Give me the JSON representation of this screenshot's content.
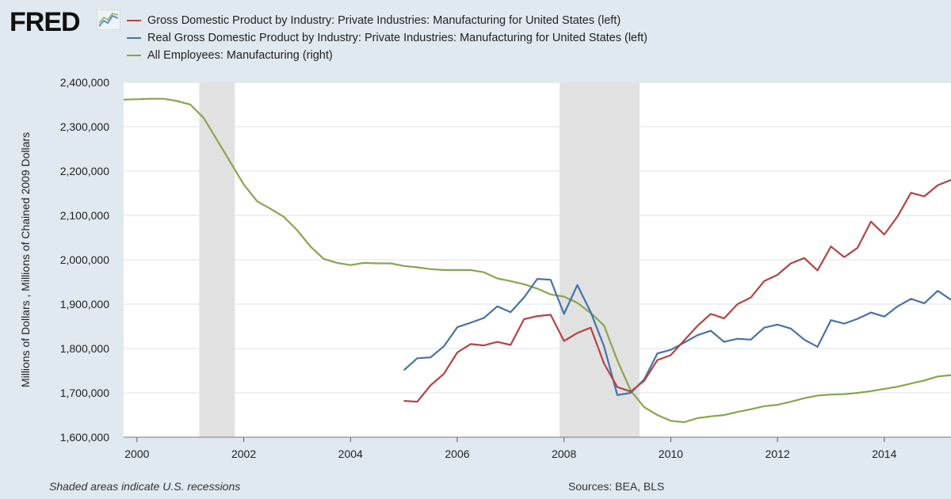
{
  "brand": "FRED",
  "footer": {
    "recession_note": "Shaded areas indicate U.S. recessions",
    "sources": "Sources: BEA, BLS"
  },
  "colors": {
    "background": "#e1e9f0",
    "plot_background": "#ffffff",
    "recession_shade": "#e1e1e1",
    "grid": "#dde3e8",
    "nominal": "#b24444",
    "real": "#4572a7",
    "employees": "#89a54e"
  },
  "chart_data": {
    "type": "line",
    "ylabel": "Millions of Dollars , Millions of Chained 2009 Dollars",
    "ylim": [
      1600000,
      2400000
    ],
    "yticks": [
      "1,600,000",
      "1,700,000",
      "1,800,000",
      "1,900,000",
      "2,000,000",
      "2,100,000",
      "2,200,000",
      "2,300,000",
      "2,400,000"
    ],
    "xlim": [
      1999.75,
      2015.25
    ],
    "xticks": [
      "2000",
      "2002",
      "2004",
      "2006",
      "2008",
      "2010",
      "2012",
      "2014"
    ],
    "grid": true,
    "legend_position": "top",
    "recessions": [
      [
        2001.167,
        2001.833
      ],
      [
        2007.917,
        2009.417
      ]
    ],
    "series": [
      {
        "name": "Gross Domestic Product by Industry: Private Industries: Manufacturing for United States (left)",
        "color": "#b24444",
        "x": [
          2005.0,
          2005.25,
          2005.5,
          2005.75,
          2006.0,
          2006.25,
          2006.5,
          2006.75,
          2007.0,
          2007.25,
          2007.5,
          2007.75,
          2008.0,
          2008.25,
          2008.5,
          2008.75,
          2009.0,
          2009.25,
          2009.5,
          2009.75,
          2010.0,
          2010.25,
          2010.5,
          2010.75,
          2011.0,
          2011.25,
          2011.5,
          2011.75,
          2012.0,
          2012.25,
          2012.5,
          2012.75,
          2013.0,
          2013.25,
          2013.5,
          2013.75,
          2014.0,
          2014.25,
          2014.5,
          2014.75,
          2015.0,
          2015.25
        ],
        "values": [
          1682000,
          1680000,
          1717000,
          1743000,
          1791000,
          1810000,
          1807000,
          1815000,
          1808000,
          1866000,
          1873000,
          1876000,
          1817000,
          1835000,
          1847000,
          1766000,
          1713000,
          1703000,
          1727000,
          1774000,
          1785000,
          1818000,
          1851000,
          1878000,
          1868000,
          1900000,
          1915000,
          1952000,
          1966000,
          1992000,
          2004000,
          1976000,
          2030000,
          2006000,
          2027000,
          2086000,
          2057000,
          2098000,
          2151000,
          2143000,
          2168000,
          2180000
        ]
      },
      {
        "name": "Real Gross Domestic Product by Industry: Private Industries: Manufacturing for United States (left)",
        "color": "#4572a7",
        "x": [
          2005.0,
          2005.25,
          2005.5,
          2005.75,
          2006.0,
          2006.25,
          2006.5,
          2006.75,
          2007.0,
          2007.25,
          2007.5,
          2007.75,
          2008.0,
          2008.25,
          2008.5,
          2008.75,
          2009.0,
          2009.25,
          2009.5,
          2009.75,
          2010.0,
          2010.25,
          2010.5,
          2010.75,
          2011.0,
          2011.25,
          2011.5,
          2011.75,
          2012.0,
          2012.25,
          2012.5,
          2012.75,
          2013.0,
          2013.25,
          2013.5,
          2013.75,
          2014.0,
          2014.25,
          2014.5,
          2014.75,
          2015.0,
          2015.25
        ],
        "values": [
          1751000,
          1778000,
          1780000,
          1805000,
          1848000,
          1858000,
          1869000,
          1895000,
          1882000,
          1915000,
          1957000,
          1955000,
          1878000,
          1943000,
          1882000,
          1805000,
          1695000,
          1700000,
          1730000,
          1789000,
          1797000,
          1813000,
          1830000,
          1840000,
          1815000,
          1822000,
          1820000,
          1847000,
          1854000,
          1845000,
          1820000,
          1804000,
          1864000,
          1856000,
          1867000,
          1881000,
          1872000,
          1895000,
          1912000,
          1902000,
          1930000,
          1910000
        ]
      },
      {
        "name": "All Employees: Manufacturing (right)",
        "color": "#89a54e",
        "x": [
          1999.75,
          2000.0,
          2000.25,
          2000.5,
          2000.75,
          2001.0,
          2001.25,
          2001.5,
          2001.75,
          2002.0,
          2002.25,
          2002.5,
          2002.75,
          2003.0,
          2003.25,
          2003.5,
          2003.75,
          2004.0,
          2004.25,
          2004.5,
          2004.75,
          2005.0,
          2005.25,
          2005.5,
          2005.75,
          2006.0,
          2006.25,
          2006.5,
          2006.75,
          2007.0,
          2007.25,
          2007.5,
          2007.75,
          2008.0,
          2008.25,
          2008.5,
          2008.75,
          2009.0,
          2009.25,
          2009.5,
          2009.75,
          2010.0,
          2010.25,
          2010.5,
          2010.75,
          2011.0,
          2011.25,
          2011.5,
          2011.75,
          2012.0,
          2012.25,
          2012.5,
          2012.75,
          2013.0,
          2013.25,
          2013.5,
          2013.75,
          2014.0,
          2014.25,
          2014.5,
          2014.75,
          2015.0,
          2015.25
        ],
        "values": [
          2361000,
          2362000,
          2363000,
          2363000,
          2358000,
          2350000,
          2320000,
          2270000,
          2220000,
          2170000,
          2132000,
          2115000,
          2097000,
          2067000,
          2030000,
          2002000,
          1993000,
          1988000,
          1993000,
          1992000,
          1992000,
          1986000,
          1983000,
          1979000,
          1977000,
          1977000,
          1977000,
          1972000,
          1958000,
          1952000,
          1945000,
          1935000,
          1922000,
          1917000,
          1903000,
          1880000,
          1852000,
          1773000,
          1705000,
          1668000,
          1650000,
          1637000,
          1634000,
          1643000,
          1647000,
          1650000,
          1657000,
          1663000,
          1670000,
          1673000,
          1680000,
          1688000,
          1694000,
          1696000,
          1697000,
          1700000,
          1704000,
          1709000,
          1714000,
          1721000,
          1728000,
          1737000,
          1740000
        ]
      }
    ]
  }
}
